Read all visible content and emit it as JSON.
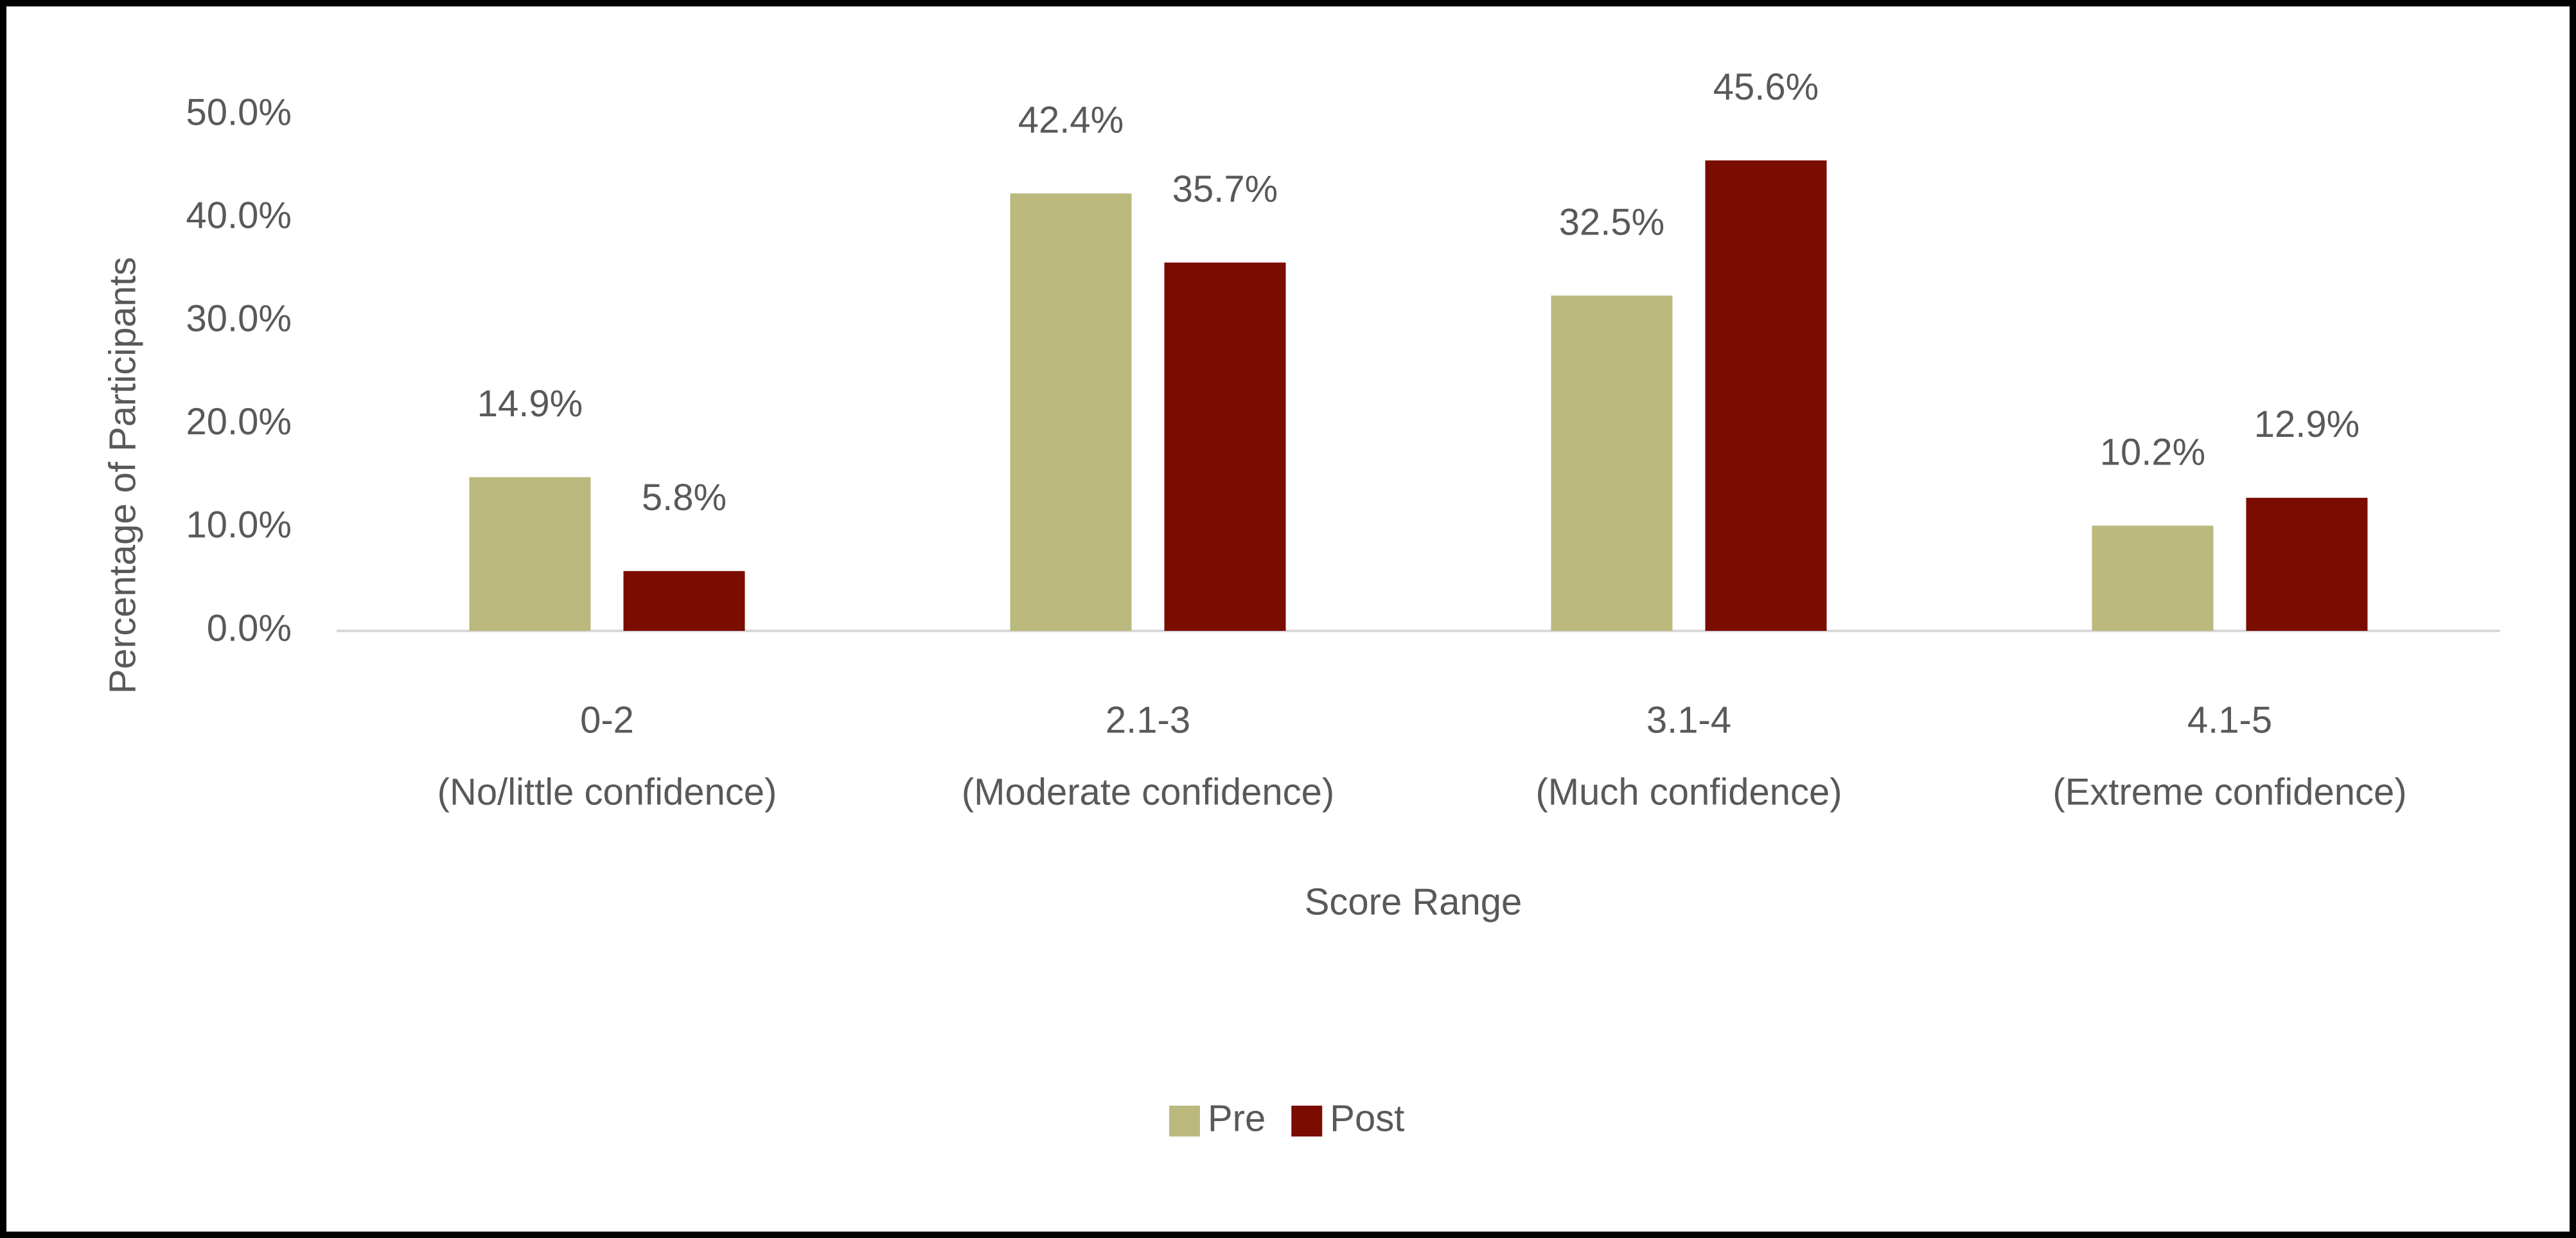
{
  "chart_data": {
    "type": "bar",
    "categories": [
      [
        "0-2",
        "(No/little confidence)"
      ],
      [
        "2.1-3",
        "(Moderate confidence)"
      ],
      [
        "3.1-4",
        "(Much confidence)"
      ],
      [
        "4.1-5",
        "(Extreme confidence)"
      ]
    ],
    "series": [
      {
        "name": "Pre",
        "color": "#bcb97f",
        "values": [
          14.9,
          42.4,
          32.5,
          10.2
        ],
        "value_labels": [
          "14.9%",
          "42.4%",
          "32.5%",
          "10.2%"
        ]
      },
      {
        "name": "Post",
        "color": "#7b0c00",
        "values": [
          5.8,
          35.7,
          45.6,
          12.9
        ],
        "value_labels": [
          "5.8%",
          "35.7%",
          "45.6%",
          "12.9%"
        ]
      }
    ],
    "ylim": [
      0,
      50
    ],
    "yticks": [
      {
        "value": 0,
        "label": "0.0%"
      },
      {
        "value": 10,
        "label": "10.0%"
      },
      {
        "value": 20,
        "label": "20.0%"
      },
      {
        "value": 30,
        "label": "30.0%"
      },
      {
        "value": 40,
        "label": "40.0%"
      },
      {
        "value": 50,
        "label": "50.0%"
      }
    ],
    "y_label": "Percentage of Participants",
    "x_label": "Score Range",
    "legend": "bottom"
  }
}
